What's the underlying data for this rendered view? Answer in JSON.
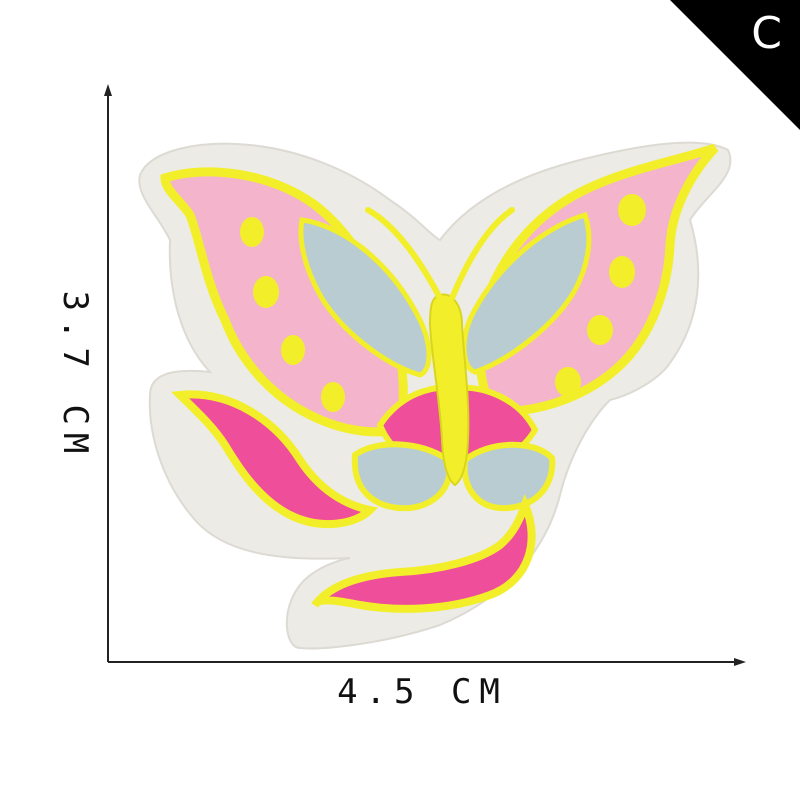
{
  "corner_badge": {
    "letter": "C"
  },
  "dimensions": {
    "width_label": "4.5 CM",
    "height_label": "3.7 CM"
  },
  "patch": {
    "subject": "butterfly-embroidered-patch",
    "colors": {
      "felt": "#ecebe6",
      "border_yellow": "#f2ef2a",
      "pink_light": "#f3b4cc",
      "pink_hot": "#ef4e9a",
      "blue_gray": "#b9ccd2"
    }
  }
}
